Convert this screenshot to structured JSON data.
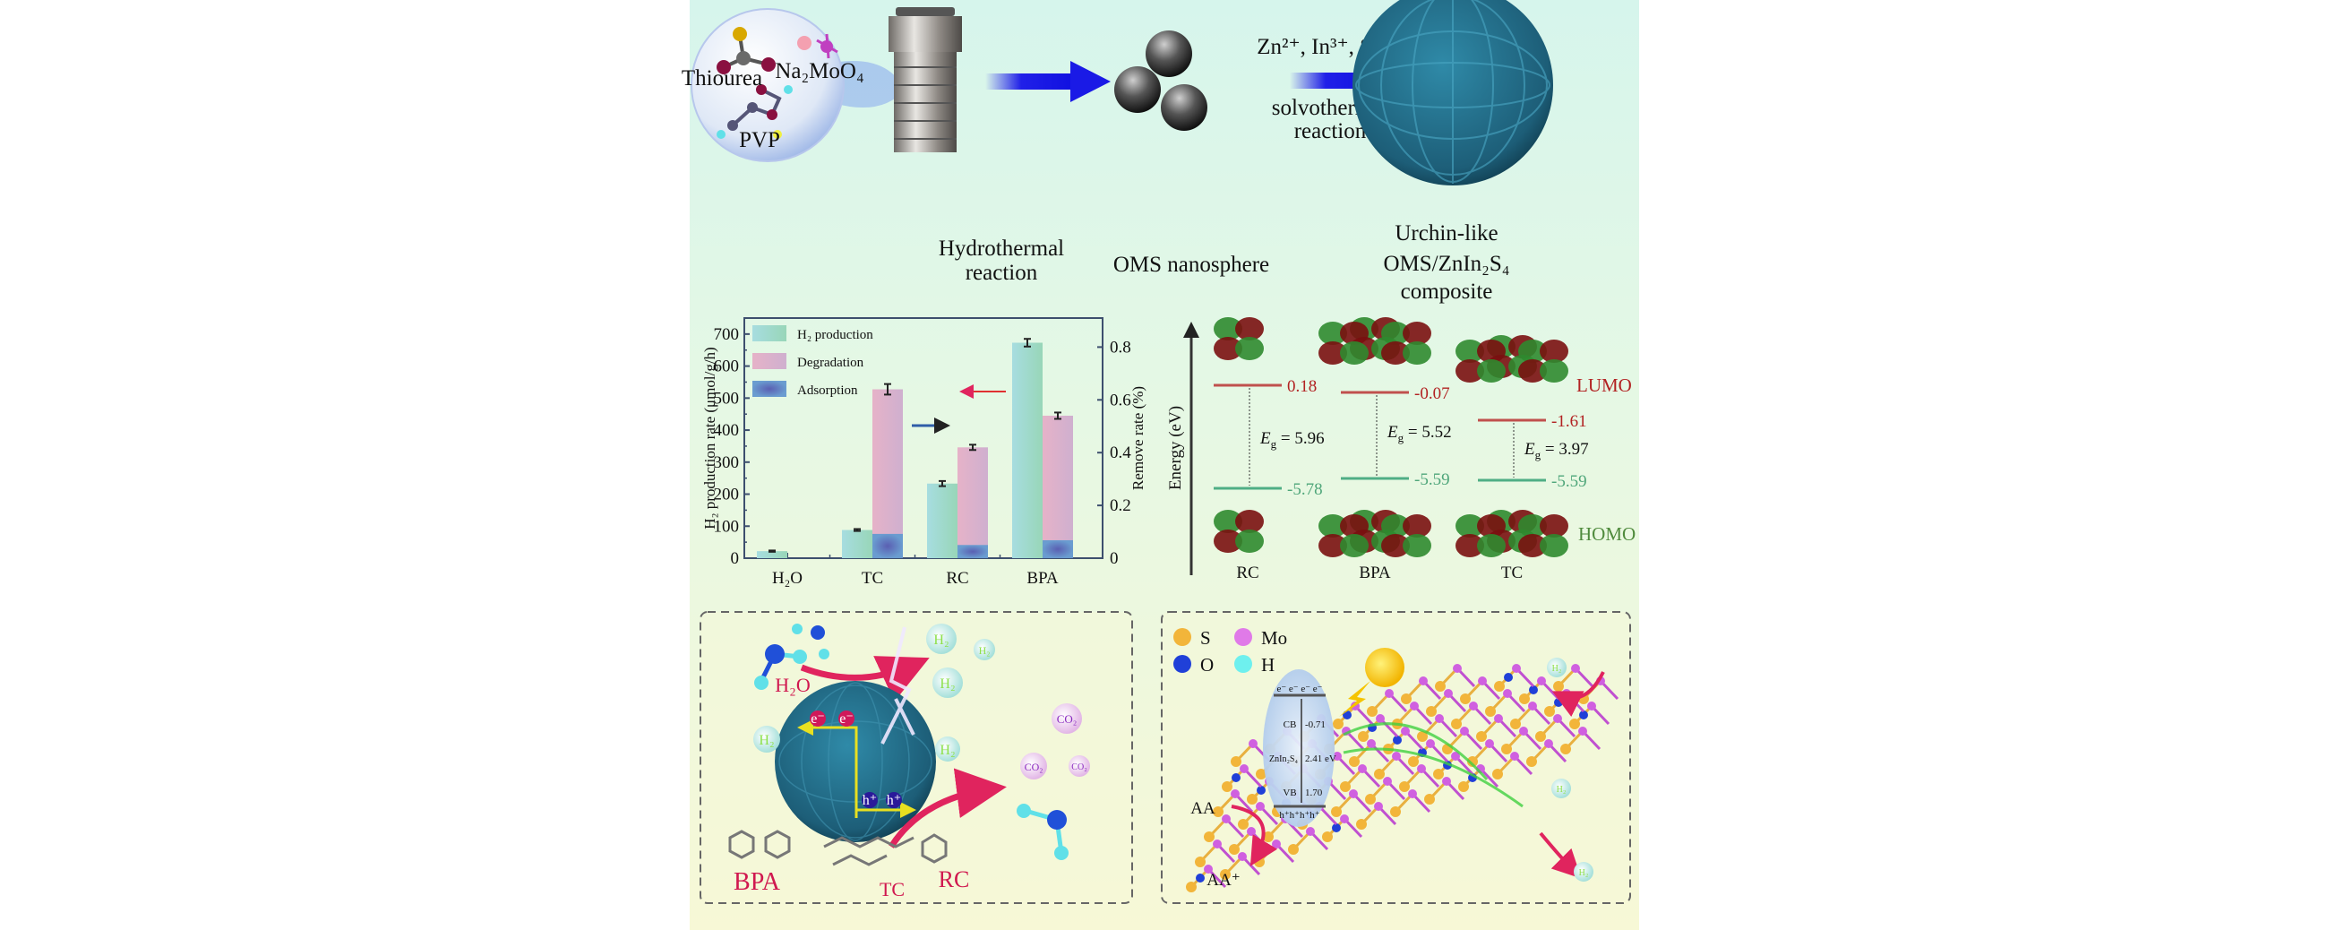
{
  "synthesis": {
    "precursors": [
      "Thiourea",
      "Na₂MoO₄",
      "PVP"
    ],
    "step1_label": [
      "Hydrothermal",
      "reaction"
    ],
    "intermediate_label": "OMS nanosphere",
    "reagents": "Zn²⁺, In³⁺, S²⁻",
    "step2_label": [
      "solvothermal",
      "reaction"
    ],
    "product_label": [
      "Urchin-like",
      "OMS/ZnIn₂S₄",
      "composite"
    ]
  },
  "chart_data": {
    "type": "bar",
    "categories": [
      "H₂O",
      "TC",
      "RC",
      "BPA"
    ],
    "ylabel": "H₂ production rate (μmol/g/h)",
    "y2label": "Remove rate (%)",
    "ylim": [
      0,
      750
    ],
    "y2lim": [
      0,
      0.91
    ],
    "yticks": [
      0,
      100,
      200,
      300,
      400,
      500,
      600,
      700
    ],
    "y2ticks": [
      0,
      0.2,
      0.4,
      0.6,
      0.8
    ],
    "y2tick_labels": [
      "0",
      "0.2",
      "0.4",
      "0.6",
      "0.8"
    ],
    "legend": [
      "H₂ production",
      "Degradation",
      "Adsorption"
    ],
    "legend_position": "top-left",
    "series": [
      {
        "name": "H₂ production",
        "axis": "left",
        "values": [
          22,
          88,
          233,
          673
        ],
        "errors": [
          2,
          3,
          8,
          12
        ],
        "color": "#9fd9d6"
      },
      {
        "name": "Degradation",
        "axis": "right",
        "values": [
          null,
          0.64,
          0.42,
          0.54
        ],
        "errors": [
          null,
          0.02,
          0.01,
          0.012
        ],
        "color": "#dcb0c8"
      },
      {
        "name": "Adsorption",
        "axis": "right",
        "values": [
          null,
          0.092,
          0.05,
          0.068
        ],
        "color": "#5e8cc4"
      }
    ]
  },
  "energy_diagram": {
    "axis_label": "Energy (eV)",
    "lumo_label": "LUMO",
    "homo_label": "HOMO",
    "molecules": [
      {
        "name": "RC",
        "lumo": "0.18",
        "homo": "-5.78",
        "eg": "5.96"
      },
      {
        "name": "BPA",
        "lumo": "-0.07",
        "homo": "-5.59",
        "eg": "5.52"
      },
      {
        "name": "TC",
        "lumo": "-1.61",
        "homo": "-5.59",
        "eg": "3.97"
      }
    ],
    "eg_symbol": "E",
    "eg_sub": "g",
    "eg_eq": " = "
  },
  "mechanism_left": {
    "water": "H₂O",
    "h2": "H₂",
    "co2": "CO₂",
    "electron": "e⁻",
    "hole": "h⁺",
    "pollutants": [
      "BPA",
      "TC",
      "RC"
    ]
  },
  "mechanism_right": {
    "legend": [
      "S",
      "Mo",
      "O",
      "H"
    ],
    "band": {
      "electrons": "e⁻ e⁻ e⁻ e⁻",
      "cb": "CB",
      "cb_value": "-0.71",
      "material": "ZnIn₂S₄",
      "gap": "2.41 eV",
      "vb": "VB",
      "vb_value": "1.70",
      "holes": "h⁺h⁺h⁺h⁺"
    },
    "h2": "H₂",
    "sacrificial": "AA",
    "sacrificial_oxidized": "AA⁺"
  },
  "colors": {
    "lumo": "#b22222",
    "homo": "#3f9a6a",
    "arrow_blue": "#2020e8",
    "arrow_red": "#e0245e",
    "urchin": "#1f5f7a"
  }
}
